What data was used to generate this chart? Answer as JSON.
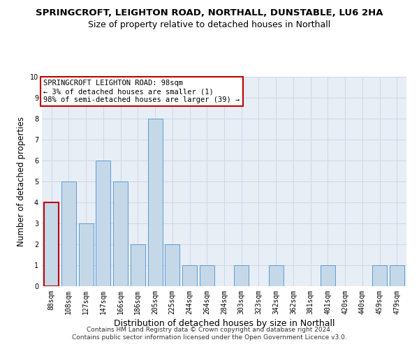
{
  "title": "SPRINGCROFT, LEIGHTON ROAD, NORTHALL, DUNSTABLE, LU6 2HA",
  "subtitle": "Size of property relative to detached houses in Northall",
  "xlabel": "Distribution of detached houses by size in Northall",
  "ylabel": "Number of detached properties",
  "categories": [
    "88sqm",
    "108sqm",
    "127sqm",
    "147sqm",
    "166sqm",
    "186sqm",
    "205sqm",
    "225sqm",
    "244sqm",
    "264sqm",
    "284sqm",
    "303sqm",
    "323sqm",
    "342sqm",
    "362sqm",
    "381sqm",
    "401sqm",
    "420sqm",
    "440sqm",
    "459sqm",
    "479sqm"
  ],
  "values": [
    4,
    5,
    3,
    6,
    5,
    2,
    8,
    2,
    1,
    1,
    0,
    1,
    0,
    1,
    0,
    0,
    1,
    0,
    0,
    1,
    1
  ],
  "bar_color": "#c5d8e8",
  "bar_edge_color": "#5b9bd5",
  "highlight_edge_color": "#c00000",
  "annotation_text_line1": "SPRINGCROFT LEIGHTON ROAD: 98sqm",
  "annotation_text_line2": "← 3% of detached houses are smaller (1)",
  "annotation_text_line3": "98% of semi-detached houses are larger (39) →",
  "annotation_box_color": "#c00000",
  "annotation_box_fill": "white",
  "ylim": [
    0,
    10
  ],
  "yticks": [
    0,
    1,
    2,
    3,
    4,
    5,
    6,
    7,
    8,
    9,
    10
  ],
  "grid_color": "#c9d8e8",
  "background_color": "#e8eef5",
  "footer_line1": "Contains HM Land Registry data © Crown copyright and database right 2024.",
  "footer_line2": "Contains public sector information licensed under the Open Government Licence v3.0.",
  "title_fontsize": 9.5,
  "subtitle_fontsize": 9,
  "xlabel_fontsize": 9,
  "ylabel_fontsize": 8.5,
  "tick_fontsize": 7,
  "annotation_fontsize": 7.5,
  "footer_fontsize": 6.5
}
